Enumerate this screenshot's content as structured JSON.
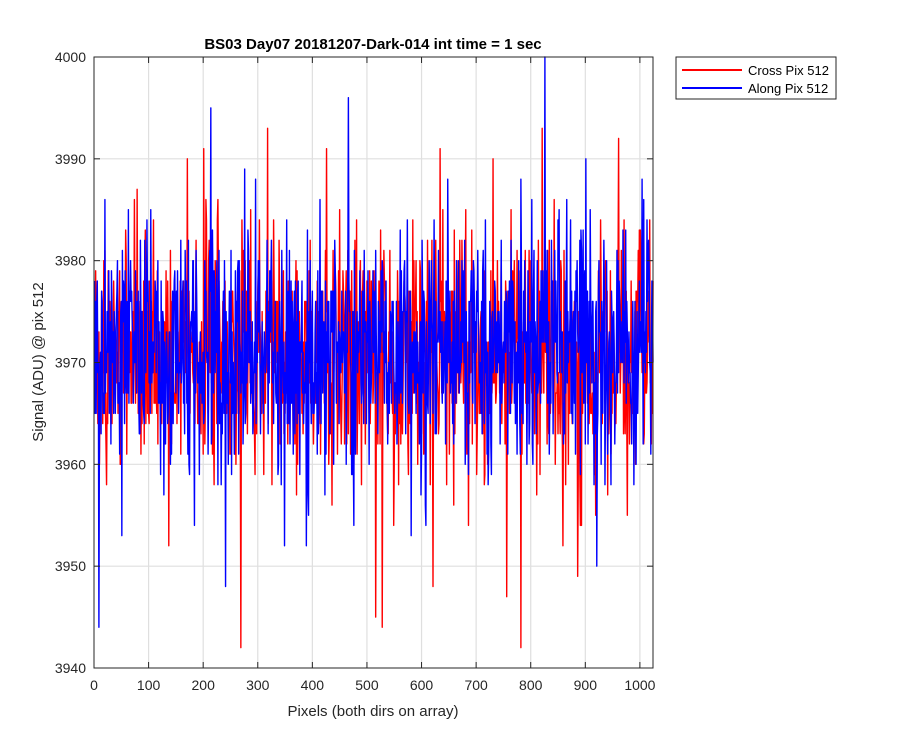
{
  "chart_data": {
    "type": "line",
    "title": "BS03 Day07 20181207-Dark-014 int time = 1 sec",
    "xlabel": "Pixels (both dirs on array)",
    "ylabel": "Signal (ADU) @ pix 512",
    "xlim": [
      0,
      1024
    ],
    "ylim": [
      3940,
      4000
    ],
    "xticks": [
      0,
      100,
      200,
      300,
      400,
      500,
      600,
      700,
      800,
      900,
      1000
    ],
    "yticks": [
      3940,
      3950,
      3960,
      3970,
      3980,
      3990,
      4000
    ],
    "grid": true,
    "legend_position": "outside-top-right",
    "noise": {
      "mean": 3971,
      "std": 6.2,
      "points": 1024
    },
    "series": [
      {
        "name": "Cross Pix 512",
        "color": "#ff0000",
        "extremes": [
          {
            "x": 268,
            "y": 3942
          },
          {
            "x": 781,
            "y": 3942
          },
          {
            "x": 527,
            "y": 3944
          },
          {
            "x": 515,
            "y": 3945
          },
          {
            "x": 620,
            "y": 3948
          },
          {
            "x": 755,
            "y": 3947
          },
          {
            "x": 885,
            "y": 3949
          },
          {
            "x": 200,
            "y": 3991
          },
          {
            "x": 317,
            "y": 3993
          },
          {
            "x": 425,
            "y": 3991
          },
          {
            "x": 633,
            "y": 3991
          },
          {
            "x": 820,
            "y": 3993
          },
          {
            "x": 960,
            "y": 3992
          },
          {
            "x": 170,
            "y": 3990
          },
          {
            "x": 730,
            "y": 3990
          }
        ]
      },
      {
        "name": "Along Pix 512",
        "color": "#0000ff",
        "extremes": [
          {
            "x": 825,
            "y": 4000
          },
          {
            "x": 465,
            "y": 3996
          },
          {
            "x": 213,
            "y": 3995
          },
          {
            "x": 8,
            "y": 3944
          },
          {
            "x": 240,
            "y": 3948
          },
          {
            "x": 920,
            "y": 3950
          },
          {
            "x": 275,
            "y": 3989
          },
          {
            "x": 900,
            "y": 3990
          },
          {
            "x": 50,
            "y": 3953
          },
          {
            "x": 580,
            "y": 3953
          }
        ]
      }
    ]
  }
}
